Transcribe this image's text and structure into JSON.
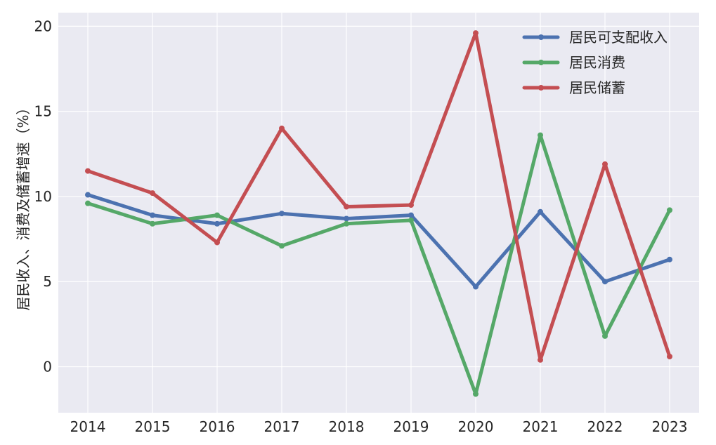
{
  "chart_data": {
    "type": "line",
    "title": "",
    "xlabel": "",
    "ylabel": "居民收入、消费及储蓄增速（%）",
    "categories": [
      "2014",
      "2015",
      "2016",
      "2017",
      "2018",
      "2019",
      "2020",
      "2021",
      "2022",
      "2023"
    ],
    "ylim": [
      -2.7,
      20.8
    ],
    "yticks": [
      0,
      5,
      10,
      15,
      20
    ],
    "grid": true,
    "legend_position": "top-right",
    "series": [
      {
        "name": "居民可支配收入",
        "color": "#4c72b0",
        "values": [
          10.1,
          8.9,
          8.4,
          9.0,
          8.7,
          8.9,
          4.7,
          9.1,
          5.0,
          6.3
        ]
      },
      {
        "name": "居民消费",
        "color": "#55a868",
        "values": [
          9.6,
          8.4,
          8.9,
          7.1,
          8.4,
          8.6,
          -1.6,
          13.6,
          1.8,
          9.2
        ]
      },
      {
        "name": "居民储蓄",
        "color": "#c44e52",
        "values": [
          11.5,
          10.2,
          7.3,
          14.0,
          9.4,
          9.5,
          19.6,
          0.4,
          11.9,
          0.6
        ]
      }
    ]
  }
}
